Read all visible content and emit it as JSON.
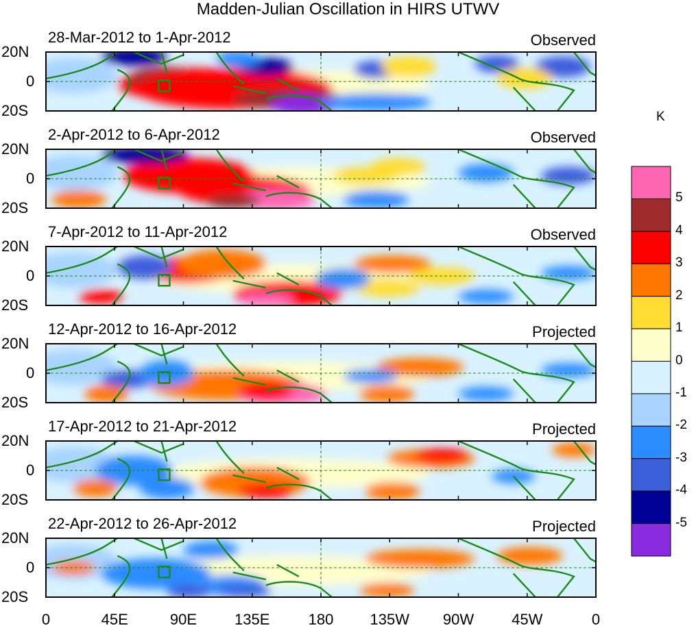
{
  "title": "Madden-Julian Oscillation in HIRS UTWV",
  "panels": [
    {
      "date_range": "28-Mar-2012 to 1-Apr-2012",
      "tag": "Observed"
    },
    {
      "date_range": "2-Apr-2012 to 6-Apr-2012",
      "tag": "Observed"
    },
    {
      "date_range": "7-Apr-2012 to 11-Apr-2012",
      "tag": "Observed"
    },
    {
      "date_range": "12-Apr-2012 to 16-Apr-2012",
      "tag": "Projected"
    },
    {
      "date_range": "17-Apr-2012 to 21-Apr-2012",
      "tag": "Projected"
    },
    {
      "date_range": "22-Apr-2012 to 26-Apr-2012",
      "tag": "Projected"
    }
  ],
  "lat_labels": [
    "20N",
    "0",
    "20S"
  ],
  "lon_labels": [
    "0",
    "45E",
    "90E",
    "135E",
    "180",
    "135W",
    "90W",
    "45W",
    "0"
  ],
  "colorbar": {
    "unit": "K",
    "labels": [
      "5",
      "4",
      "3",
      "2",
      "1",
      "0",
      "-1",
      "-2",
      "-3",
      "-4",
      "-5"
    ],
    "colors": [
      "#ff66b2",
      "#9e2a2b",
      "#ff0000",
      "#ff7700",
      "#ffdd33",
      "#ffffcc",
      "#d9f2ff",
      "#a8d4ff",
      "#2a8cff",
      "#3c5fdc",
      "#000096",
      "#8a2be2"
    ]
  },
  "palette": {
    "coast": "#1a8a1a",
    "dash": "#1a8a1a"
  }
}
